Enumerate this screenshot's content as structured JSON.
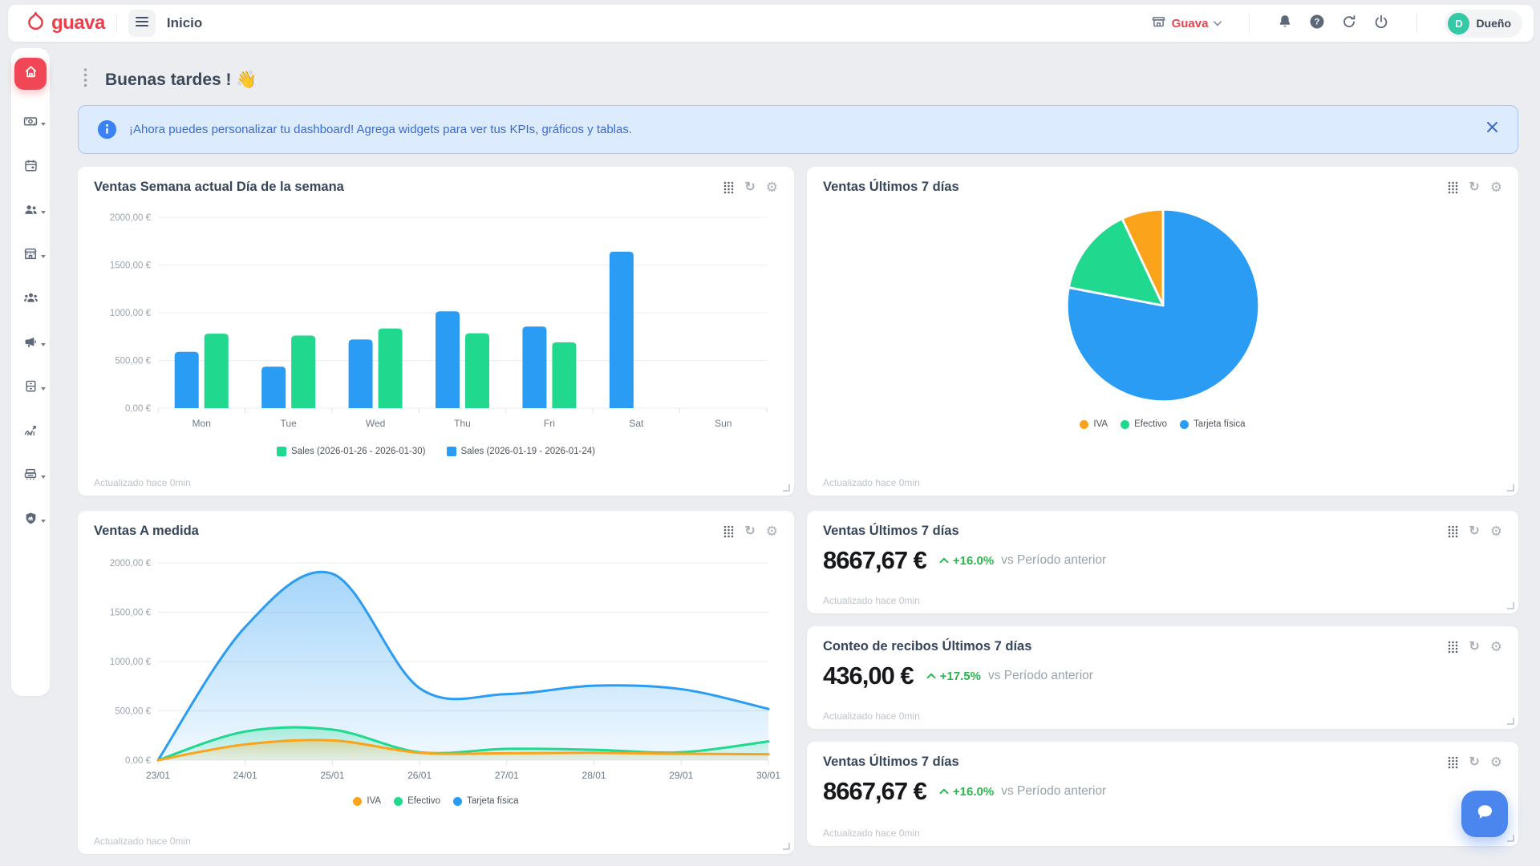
{
  "app": {
    "brand": "guava",
    "page_title": "Inicio"
  },
  "topbar": {
    "store_name": "Guava",
    "user_initial": "D",
    "user_name": "Dueño"
  },
  "greeting": {
    "text": "Buenas tardes !",
    "emoji": "👋"
  },
  "banner": {
    "message": "¡Ahora puedes personalizar tu dashboard! Agrega widgets para ver tus KPIs, gráficos y tablas."
  },
  "icons": {
    "gear": "⚙",
    "refresh": "↻",
    "help_glyph": "?"
  },
  "colors": {
    "brand_red": "#ed3e4b",
    "chart_blue": "#2b9cf4",
    "chart_green": "#20d98e",
    "chart_orange": "#fba41b",
    "kpi_green": "#2bb54d",
    "banner_blue": "#3a6bd2",
    "avatar_teal": "#33c8a6"
  },
  "sidebar": {
    "items": [
      "home",
      "sales",
      "calendar",
      "customers",
      "store",
      "team",
      "marketing",
      "inventory",
      "stats",
      "pos",
      "admin"
    ]
  },
  "widgets": {
    "bar": {
      "title": "Ventas Semana actual Día de la semana",
      "updated": "Actualizado hace 0min"
    },
    "pie": {
      "title": "Ventas Últimos 7 días",
      "updated": "Actualizado hace 0min"
    },
    "area": {
      "title": "Ventas A medida",
      "updated": "Actualizado hace 0min"
    },
    "kpi_sales": {
      "title": "Ventas Últimos 7 días",
      "value": "8667,67 €",
      "delta": "+16.0%",
      "compare": "vs Período anterior",
      "updated": "Actualizado hace 0min"
    },
    "kpi_receipts": {
      "title": "Conteo de recibos Últimos 7 días",
      "value": "436,00 €",
      "delta": "+17.5%",
      "compare": "vs Período anterior",
      "updated": "Actualizado hace 0min"
    },
    "kpi_sales2": {
      "title": "Ventas Últimos 7 días",
      "value": "8667,67 €",
      "delta": "+16.0%",
      "compare": "vs Período anterior",
      "updated": "Actualizado hace 0min"
    }
  },
  "chart_data": [
    {
      "id": "weekly_bar",
      "type": "bar",
      "title": "Ventas Semana actual Día de la semana",
      "categories": [
        "Mon",
        "Tue",
        "Wed",
        "Thu",
        "Fri",
        "Sat",
        "Sun"
      ],
      "series": [
        {
          "name": "Sales (2026-01-19 - 2026-01-24)",
          "color": "#2b9cf4",
          "values": [
            590,
            435,
            720,
            1015,
            855,
            1640,
            0
          ]
        },
        {
          "name": "Sales (2026-01-26 - 2026-01-30)",
          "color": "#20d98e",
          "values": [
            780,
            760,
            835,
            785,
            690,
            0,
            0
          ]
        }
      ],
      "legend": [
        {
          "label": "Sales (2026-01-26 - 2026-01-30)",
          "color": "#20d98e"
        },
        {
          "label": "Sales (2026-01-19 - 2026-01-24)",
          "color": "#2b9cf4"
        }
      ],
      "ylim": [
        0,
        2000
      ],
      "yticks": [
        {
          "v": 0,
          "label": "0,00 €"
        },
        {
          "v": 500,
          "label": "500,00 €"
        },
        {
          "v": 1000,
          "label": "1000,00 €"
        },
        {
          "v": 1500,
          "label": "1500,00 €"
        },
        {
          "v": 2000,
          "label": "2000,00 €"
        }
      ],
      "grid": true,
      "legend_position": "bottom"
    },
    {
      "id": "payment_pie",
      "type": "pie",
      "title": "Ventas Últimos 7 días",
      "slices": [
        {
          "label": "Tarjeta física",
          "value": 78,
          "color": "#2b9cf4"
        },
        {
          "label": "Efectivo",
          "value": 15,
          "color": "#20d98e"
        },
        {
          "label": "IVA",
          "value": 7,
          "color": "#fba41b"
        }
      ],
      "legend": [
        {
          "label": "IVA",
          "color": "#fba41b"
        },
        {
          "label": "Efectivo",
          "color": "#20d98e"
        },
        {
          "label": "Tarjeta física",
          "color": "#2b9cf4"
        }
      ],
      "legend_position": "bottom"
    },
    {
      "id": "custom_area",
      "type": "area",
      "title": "Ventas A medida",
      "x": [
        "23/01",
        "24/01",
        "25/01",
        "26/01",
        "27/01",
        "28/01",
        "29/01",
        "30/01"
      ],
      "series": [
        {
          "name": "Tarjeta física",
          "color": "#2b9cf4",
          "values": [
            0,
            1350,
            1890,
            730,
            670,
            755,
            720,
            520
          ]
        },
        {
          "name": "Efectivo",
          "color": "#20d98e",
          "values": [
            0,
            290,
            310,
            80,
            115,
            105,
            80,
            190
          ]
        },
        {
          "name": "IVA",
          "color": "#fba41b",
          "values": [
            0,
            160,
            200,
            75,
            70,
            75,
            65,
            60
          ]
        }
      ],
      "legend": [
        {
          "label": "IVA",
          "color": "#fba41b"
        },
        {
          "label": "Efectivo",
          "color": "#20d98e"
        },
        {
          "label": "Tarjeta física",
          "color": "#2b9cf4"
        }
      ],
      "ylim": [
        0,
        2000
      ],
      "yticks": [
        {
          "v": 0,
          "label": "0,00 €"
        },
        {
          "v": 500,
          "label": "500,00 €"
        },
        {
          "v": 1000,
          "label": "1000,00 €"
        },
        {
          "v": 1500,
          "label": "1500,00 €"
        },
        {
          "v": 2000,
          "label": "2000,00 €"
        }
      ],
      "grid": true,
      "legend_position": "bottom"
    }
  ]
}
